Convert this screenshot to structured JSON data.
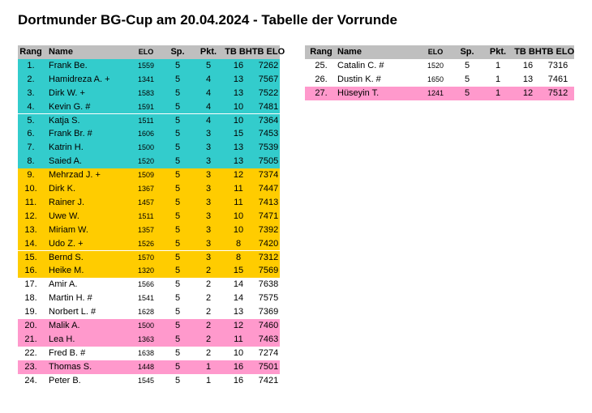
{
  "title": "Dortmunder BG-Cup am 20.04.2024 - Tabelle der Vorrunde",
  "tables": [
    {
      "header": [
        "Rang",
        "Name",
        "ELO",
        "Sp.",
        "Pkt.",
        "TB BH",
        "TB ELO"
      ],
      "rows": [
        {
          "cells": [
            "1.",
            "Frank Be.",
            1559,
            5,
            5,
            16,
            7262
          ],
          "color": "#33cccc"
        },
        {
          "cells": [
            "2.",
            "Hamidreza A. +",
            1341,
            5,
            4,
            13,
            7567
          ],
          "color": "#33cccc"
        },
        {
          "cells": [
            "3.",
            "Dirk W. +",
            1583,
            5,
            4,
            13,
            7522
          ],
          "color": "#33cccc"
        },
        {
          "cells": [
            "4.",
            "Kevin G. #",
            1591,
            5,
            4,
            10,
            7481
          ],
          "color": "#33cccc"
        },
        {
          "cells": [
            "5.",
            "Katja S.",
            1511,
            5,
            4,
            10,
            7364
          ],
          "color": "#33cccc"
        },
        {
          "cells": [
            "6.",
            "Frank Br. #",
            1606,
            5,
            3,
            15,
            7453
          ],
          "color": "#33cccc"
        },
        {
          "cells": [
            "7.",
            "Katrin H.",
            1500,
            5,
            3,
            13,
            7539
          ],
          "color": "#33cccc"
        },
        {
          "cells": [
            "8.",
            "Saied A.",
            1520,
            5,
            3,
            13,
            7505
          ],
          "color": "#33cccc"
        },
        {
          "cells": [
            "9.",
            "Mehrzad J. +",
            1509,
            5,
            3,
            12,
            7374
          ],
          "color": "#ffcc00"
        },
        {
          "cells": [
            "10.",
            "Dirk K.",
            1367,
            5,
            3,
            11,
            7447
          ],
          "color": "#ffcc00"
        },
        {
          "cells": [
            "11.",
            "Rainer J.",
            1457,
            5,
            3,
            11,
            7413
          ],
          "color": "#ffcc00"
        },
        {
          "cells": [
            "12.",
            "Uwe W.",
            1511,
            5,
            3,
            10,
            7471
          ],
          "color": "#ffcc00"
        },
        {
          "cells": [
            "13.",
            "Miriam W.",
            1357,
            5,
            3,
            10,
            7392
          ],
          "color": "#ffcc00"
        },
        {
          "cells": [
            "14.",
            "Udo Z. +",
            1526,
            5,
            3,
            8,
            7420
          ],
          "color": "#ffcc00"
        },
        {
          "cells": [
            "15.",
            "Bernd S.",
            1570,
            5,
            3,
            8,
            7312
          ],
          "color": "#ffcc00"
        },
        {
          "cells": [
            "16.",
            "Heike M.",
            1320,
            5,
            2,
            15,
            7569
          ],
          "color": "#ffcc00"
        },
        {
          "cells": [
            "17.",
            "Amir A.",
            1566,
            5,
            2,
            14,
            7638
          ]
        },
        {
          "cells": [
            "18.",
            "Martin H. #",
            1541,
            5,
            2,
            14,
            7575
          ]
        },
        {
          "cells": [
            "19.",
            "Norbert L. #",
            1628,
            5,
            2,
            13,
            7369
          ]
        },
        {
          "cells": [
            "20.",
            "Malik A.",
            1500,
            5,
            2,
            12,
            7460
          ],
          "color": "#ff99cc"
        },
        {
          "cells": [
            "21.",
            "Lea H.",
            1363,
            5,
            2,
            11,
            7463
          ],
          "color": "#ff99cc"
        },
        {
          "cells": [
            "22.",
            "Fred B. #",
            1638,
            5,
            2,
            10,
            7274
          ]
        },
        {
          "cells": [
            "23.",
            "Thomas S.",
            1448,
            5,
            1,
            16,
            7501
          ],
          "color": "#ff99cc"
        },
        {
          "cells": [
            "24.",
            "Peter B.",
            1545,
            5,
            1,
            16,
            7421
          ]
        }
      ]
    },
    {
      "header": [
        "Rang",
        "Name",
        "ELO",
        "Sp.",
        "Pkt.",
        "TB BH",
        "TB ELO"
      ],
      "rows": [
        {
          "cells": [
            "25.",
            "Catalin C. #",
            1520,
            5,
            1,
            16,
            7316
          ]
        },
        {
          "cells": [
            "26.",
            "Dustin K. #",
            1650,
            5,
            1,
            13,
            7461
          ]
        },
        {
          "cells": [
            "27.",
            "Hüseyin T.",
            1241,
            5,
            1,
            12,
            7512
          ],
          "color": "#ff99cc"
        }
      ]
    }
  ]
}
